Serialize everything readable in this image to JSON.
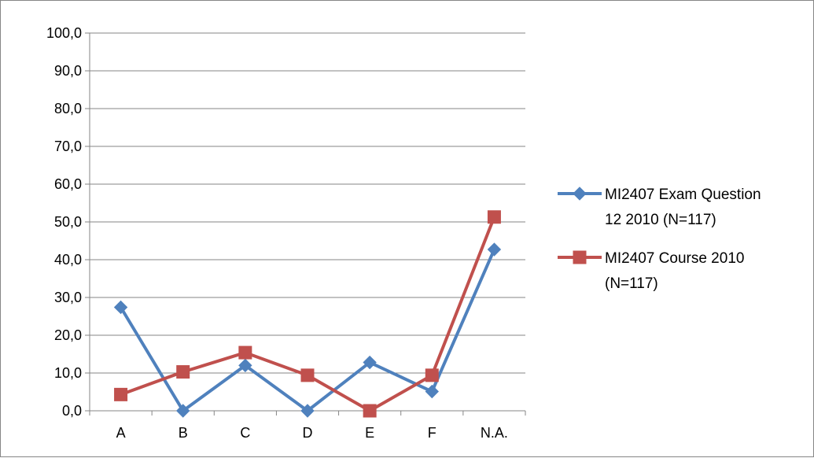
{
  "chart_data": {
    "type": "line",
    "categories": [
      "A",
      "B",
      "C",
      "D",
      "E",
      "F",
      "N.A."
    ],
    "y_ticks": [
      "0,0",
      "10,0",
      "20,0",
      "30,0",
      "40,0",
      "50,0",
      "60,0",
      "70,0",
      "80,0",
      "90,0",
      "100,0"
    ],
    "ylim": [
      0,
      100
    ],
    "grid": "horizontal",
    "legend_position": "right",
    "series": [
      {
        "name": "MI2407 Exam Question 12 2010 (N=117)",
        "legend_lines": [
          "MI2407 Exam Question",
          "12 2010 (N=117)"
        ],
        "color": "#4f81bd",
        "marker": "diamond",
        "values": [
          27.4,
          0.0,
          12.0,
          0.0,
          12.8,
          5.1,
          42.7
        ]
      },
      {
        "name": "MI2407 Course 2010 (N=117)",
        "legend_lines": [
          "MI2407 Course 2010",
          "(N=117)"
        ],
        "color": "#c0504d",
        "marker": "square",
        "values": [
          4.3,
          10.3,
          15.4,
          9.4,
          0.0,
          9.4,
          51.3
        ]
      }
    ]
  }
}
